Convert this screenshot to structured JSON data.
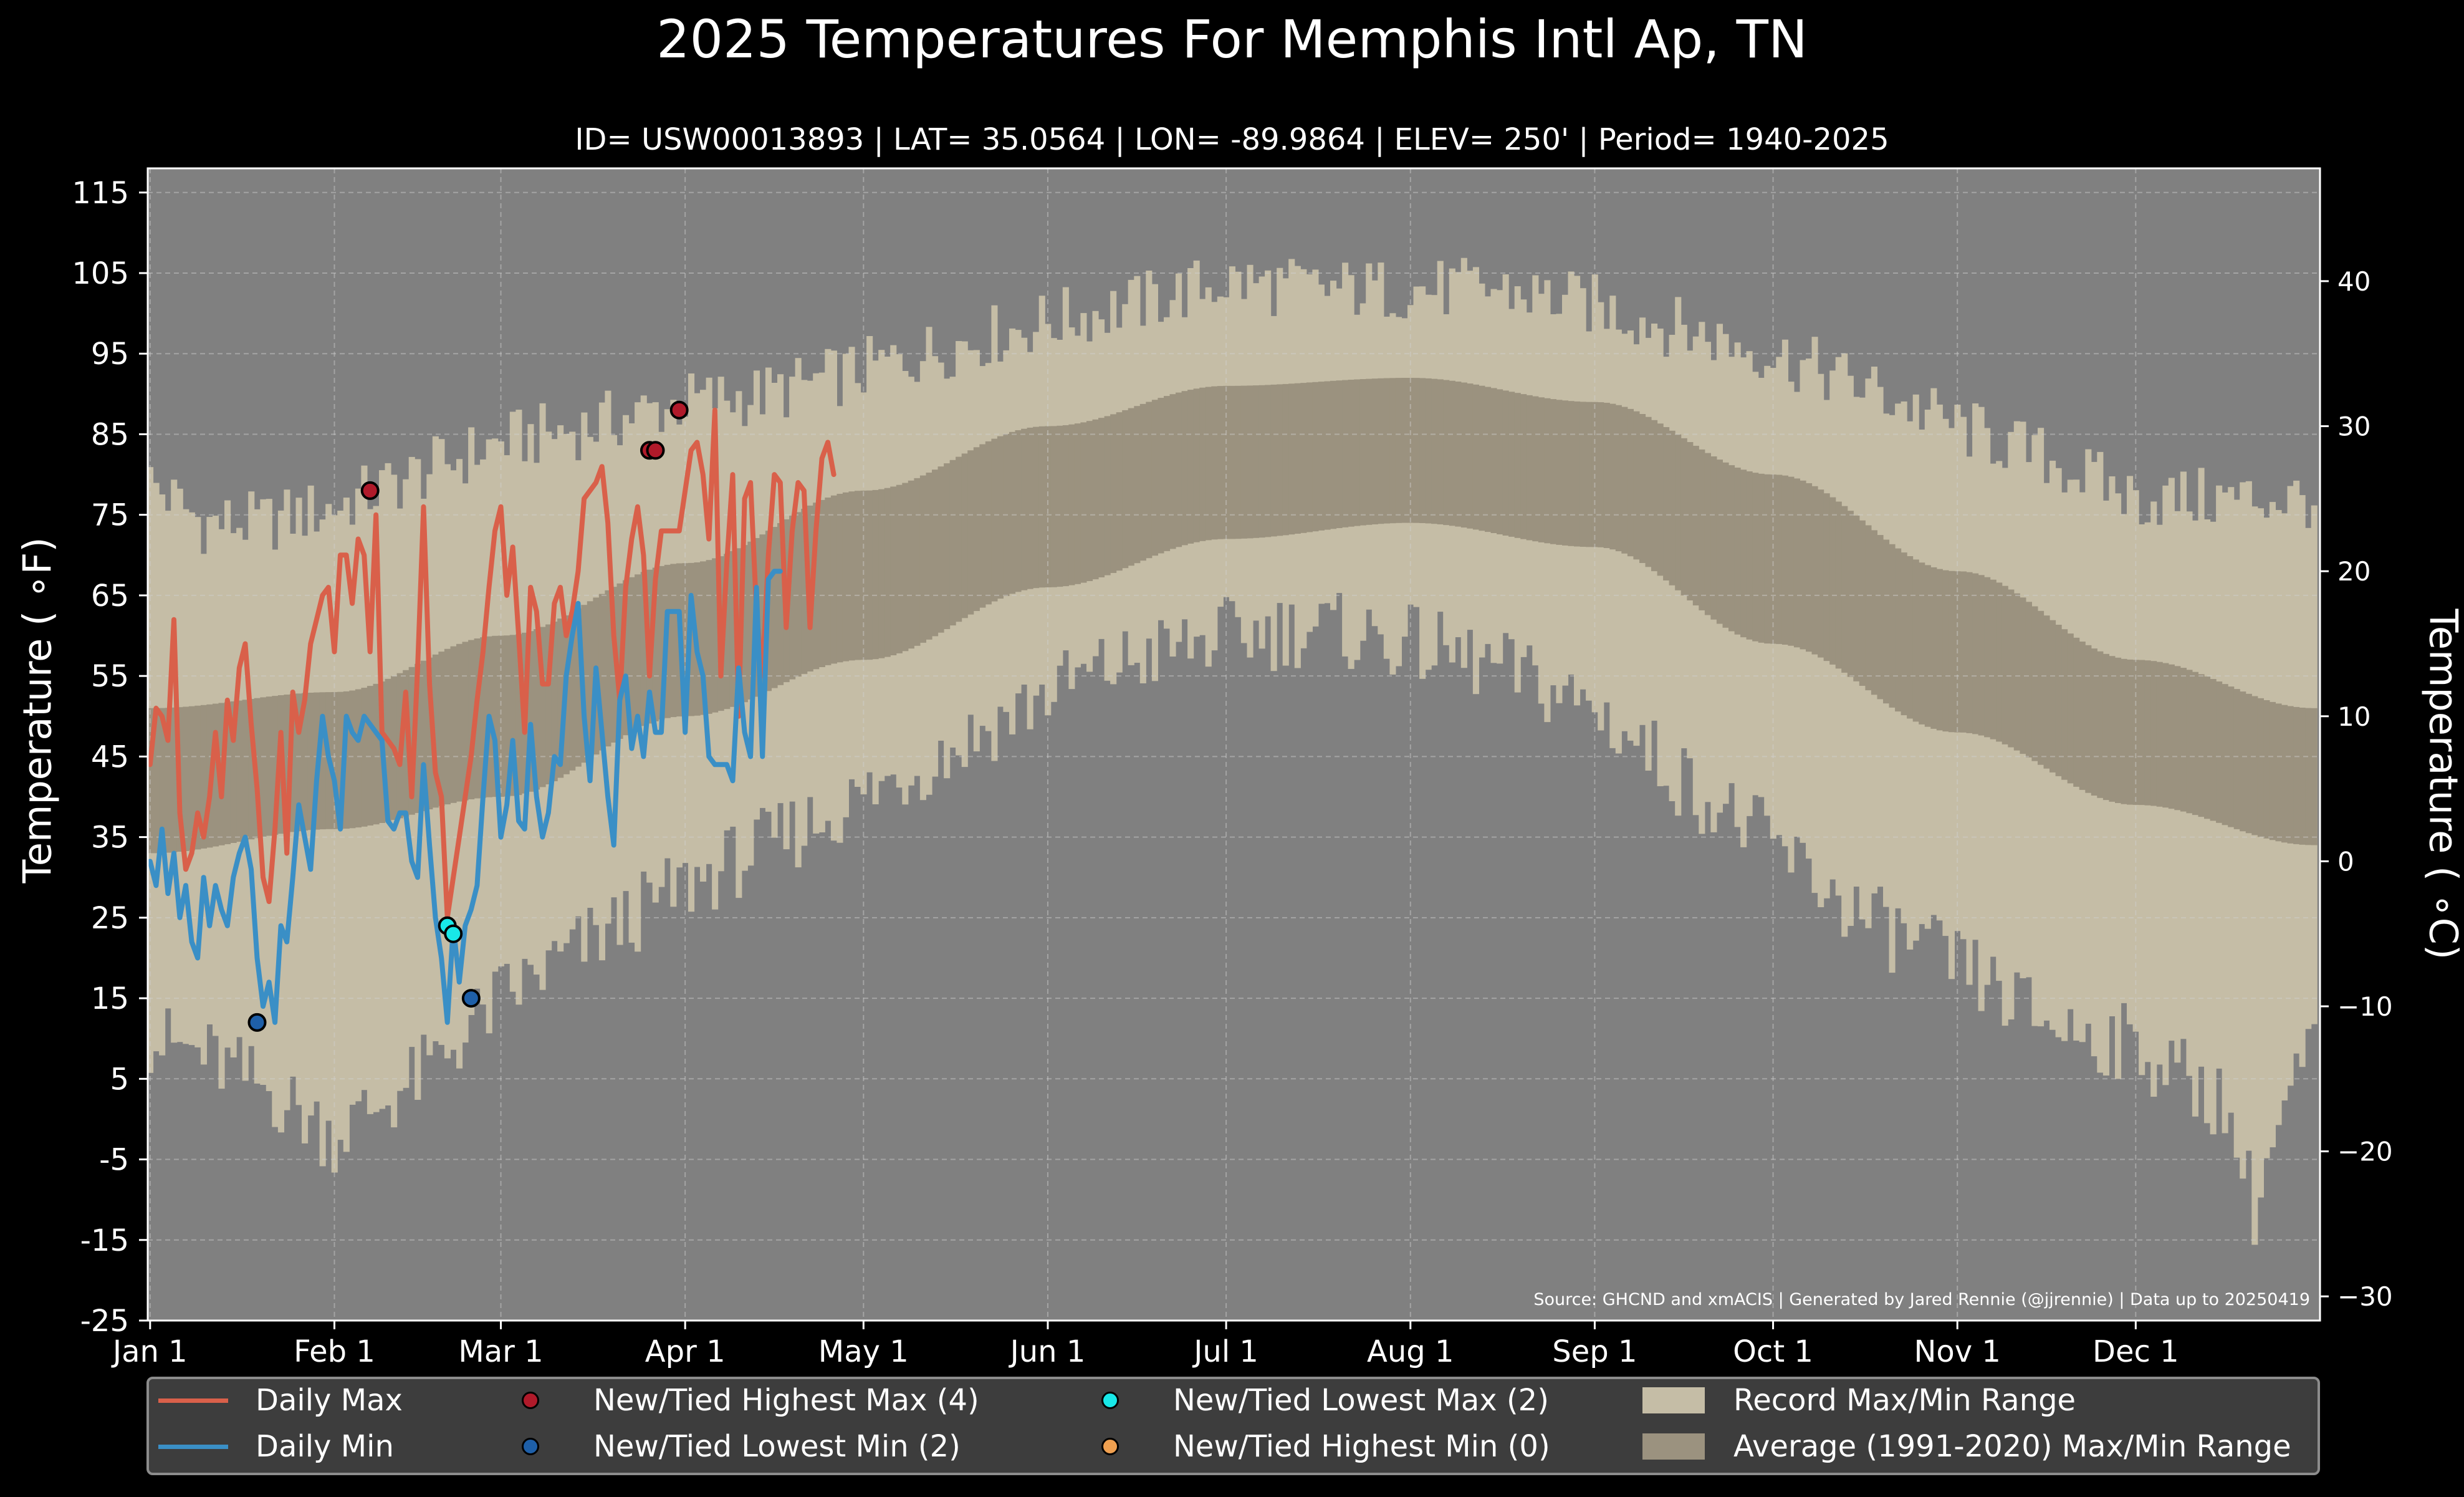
{
  "header": {
    "title": "2025 Temperatures For Memphis Intl Ap, TN",
    "subtitle": "ID= USW00013893 | LAT= 35.0564 | LON= -89.9864 | ELEV= 250' | Period= 1940-2025"
  },
  "source_note": "Source: GHCND and xmACIS | Generated by Jared Rennie (@jjrennie) | Data up to 20250419",
  "colors": {
    "figure_bg": "#000000",
    "plot_bg": "#808080",
    "record_range": "#c5bda6",
    "average_range": "#9b927f",
    "daily_max": "#d9604a",
    "daily_min": "#3a8fc6",
    "new_highest_max": "#b01a2a",
    "new_lowest_min": "#1e5fa8",
    "new_lowest_max": "#18e8e8",
    "new_highest_min": "#f0a050",
    "legend_bg": "#3d3d3d"
  },
  "legend": {
    "daily_max": "Daily Max",
    "daily_min": "Daily Min",
    "highest_max": "New/Tied Highest Max (4)",
    "lowest_min": "New/Tied Lowest Min (2)",
    "lowest_max": "New/Tied Lowest Max (2)",
    "highest_min": "New/Tied Highest Min (0)",
    "record_range": "Record Max/Min Range",
    "average_range": "Average (1991-2020) Max/Min Range"
  },
  "chart_data": {
    "type": "line",
    "title": "2025 Temperatures For Memphis Intl Ap, TN",
    "subtitle": "ID= USW00013893 | LAT= 35.0564 | LON= -89.9864 | ELEV= 250' | Period= 1940-2025",
    "ylabel": "Temperature ($^\\circ$F)",
    "ylabel_right": "Temperature ($^\\circ$C)",
    "ylabel_display": "Temperature ( ∘F)",
    "ylabel_right_display": "Temperature ( ∘C)",
    "ylim": [
      -25,
      118
    ],
    "y_ticks_f": [
      "115",
      "105",
      "95",
      "85",
      "75",
      "65",
      "55",
      "45",
      "35",
      "25",
      "15",
      "5",
      "-5",
      "-15",
      "-25"
    ],
    "y_ticks_c": [
      "40",
      "30",
      "20",
      "10",
      "0",
      "−10",
      "−20",
      "−30"
    ],
    "x_ticks": [
      "Jan 1",
      "Feb 1",
      "Mar 1",
      "Apr 1",
      "May 1",
      "Jun 1",
      "Jul 1",
      "Aug 1",
      "Sep 1",
      "Oct 1",
      "Nov 1",
      "Dec 1"
    ],
    "x_tick_days": [
      1,
      32,
      60,
      91,
      121,
      152,
      182,
      213,
      244,
      274,
      305,
      335
    ],
    "days_in_year": 365,
    "grid": true,
    "legend_position": "bottom",
    "daily_max": [
      [
        1,
        44
      ],
      [
        2,
        51
      ],
      [
        3,
        50
      ],
      [
        4,
        47
      ],
      [
        5,
        62
      ],
      [
        6,
        38
      ],
      [
        7,
        31
      ],
      [
        8,
        33
      ],
      [
        9,
        38
      ],
      [
        10,
        35
      ],
      [
        11,
        40
      ],
      [
        12,
        48
      ],
      [
        13,
        40
      ],
      [
        14,
        52
      ],
      [
        15,
        47
      ],
      [
        16,
        56
      ],
      [
        17,
        59
      ],
      [
        18,
        49
      ],
      [
        19,
        41
      ],
      [
        20,
        30
      ],
      [
        21,
        27
      ],
      [
        22,
        36
      ],
      [
        23,
        48
      ],
      [
        24,
        33
      ],
      [
        25,
        53
      ],
      [
        26,
        48
      ],
      [
        27,
        52
      ],
      [
        28,
        59
      ],
      [
        29,
        62
      ],
      [
        30,
        65
      ],
      [
        31,
        66
      ],
      [
        32,
        58
      ],
      [
        33,
        70
      ],
      [
        34,
        70
      ],
      [
        35,
        64
      ],
      [
        36,
        72
      ],
      [
        37,
        70
      ],
      [
        38,
        58
      ],
      [
        39,
        75
      ],
      [
        40,
        48
      ],
      [
        41,
        47
      ],
      [
        42,
        46
      ],
      [
        43,
        44
      ],
      [
        44,
        53
      ],
      [
        45,
        40
      ],
      [
        46,
        56
      ],
      [
        47,
        76
      ],
      [
        48,
        54
      ],
      [
        49,
        43
      ],
      [
        50,
        40
      ],
      [
        51,
        25
      ],
      [
        52,
        30
      ],
      [
        53,
        35
      ],
      [
        54,
        40
      ],
      [
        55,
        45
      ],
      [
        56,
        52
      ],
      [
        57,
        58
      ],
      [
        58,
        66
      ],
      [
        59,
        73
      ],
      [
        60,
        76
      ],
      [
        61,
        65
      ],
      [
        62,
        71
      ],
      [
        63,
        60
      ],
      [
        64,
        48
      ],
      [
        65,
        66
      ],
      [
        66,
        63
      ],
      [
        67,
        54
      ],
      [
        68,
        54
      ],
      [
        69,
        64
      ],
      [
        70,
        66
      ],
      [
        71,
        60
      ],
      [
        72,
        63
      ],
      [
        73,
        68
      ],
      [
        74,
        77
      ],
      [
        75,
        78
      ],
      [
        76,
        79
      ],
      [
        77,
        81
      ],
      [
        78,
        74
      ],
      [
        79,
        60
      ],
      [
        80,
        52
      ],
      [
        81,
        66
      ],
      [
        82,
        72
      ],
      [
        83,
        76
      ],
      [
        84,
        70
      ],
      [
        85,
        55
      ],
      [
        86,
        67
      ],
      [
        87,
        73
      ],
      [
        88,
        73
      ],
      [
        89,
        73
      ],
      [
        90,
        73
      ],
      [
        91,
        78
      ],
      [
        92,
        83
      ],
      [
        93,
        84
      ],
      [
        94,
        80
      ],
      [
        95,
        72
      ],
      [
        96,
        88
      ],
      [
        97,
        55
      ],
      [
        98,
        69
      ],
      [
        99,
        80
      ],
      [
        100,
        50
      ],
      [
        101,
        77
      ],
      [
        102,
        79
      ],
      [
        103,
        63
      ],
      [
        104,
        55
      ],
      [
        105,
        70
      ],
      [
        106,
        80
      ],
      [
        107,
        79
      ],
      [
        108,
        61
      ],
      [
        109,
        73
      ],
      [
        110,
        79
      ],
      [
        111,
        78
      ],
      [
        112,
        61
      ],
      [
        113,
        73
      ],
      [
        114,
        82
      ],
      [
        115,
        84
      ],
      [
        116,
        80
      ]
    ],
    "daily_min": [
      [
        1,
        32
      ],
      [
        2,
        29
      ],
      [
        3,
        36
      ],
      [
        4,
        28
      ],
      [
        5,
        33
      ],
      [
        6,
        25
      ],
      [
        7,
        29
      ],
      [
        8,
        22
      ],
      [
        9,
        20
      ],
      [
        10,
        30
      ],
      [
        11,
        24
      ],
      [
        12,
        29
      ],
      [
        13,
        26
      ],
      [
        14,
        24
      ],
      [
        15,
        30
      ],
      [
        16,
        33
      ],
      [
        17,
        35
      ],
      [
        18,
        31
      ],
      [
        19,
        20
      ],
      [
        20,
        14
      ],
      [
        21,
        17
      ],
      [
        22,
        12
      ],
      [
        23,
        24
      ],
      [
        24,
        22
      ],
      [
        25,
        30
      ],
      [
        26,
        39
      ],
      [
        27,
        35
      ],
      [
        28,
        31
      ],
      [
        29,
        42
      ],
      [
        30,
        50
      ],
      [
        31,
        45
      ],
      [
        32,
        42
      ],
      [
        33,
        36
      ],
      [
        34,
        50
      ],
      [
        35,
        48
      ],
      [
        36,
        47
      ],
      [
        37,
        50
      ],
      [
        38,
        49
      ],
      [
        39,
        48
      ],
      [
        40,
        47
      ],
      [
        41,
        37
      ],
      [
        42,
        36
      ],
      [
        43,
        38
      ],
      [
        44,
        38
      ],
      [
        45,
        32
      ],
      [
        46,
        30
      ],
      [
        47,
        44
      ],
      [
        48,
        34
      ],
      [
        49,
        25
      ],
      [
        50,
        20
      ],
      [
        51,
        12
      ],
      [
        52,
        24
      ],
      [
        53,
        17
      ],
      [
        54,
        24
      ],
      [
        55,
        26
      ],
      [
        56,
        29
      ],
      [
        57,
        40
      ],
      [
        58,
        50
      ],
      [
        59,
        47
      ],
      [
        60,
        35
      ],
      [
        61,
        39
      ],
      [
        62,
        47
      ],
      [
        63,
        37
      ],
      [
        64,
        36
      ],
      [
        65,
        49
      ],
      [
        66,
        40
      ],
      [
        67,
        35
      ],
      [
        68,
        38
      ],
      [
        69,
        45
      ],
      [
        70,
        44
      ],
      [
        71,
        55
      ],
      [
        72,
        60
      ],
      [
        73,
        64
      ],
      [
        74,
        50
      ],
      [
        75,
        42
      ],
      [
        76,
        56
      ],
      [
        77,
        48
      ],
      [
        78,
        40
      ],
      [
        79,
        34
      ],
      [
        80,
        52
      ],
      [
        81,
        55
      ],
      [
        82,
        46
      ],
      [
        83,
        50
      ],
      [
        84,
        45
      ],
      [
        85,
        53
      ],
      [
        86,
        48
      ],
      [
        87,
        48
      ],
      [
        88,
        63
      ],
      [
        89,
        63
      ],
      [
        90,
        63
      ],
      [
        91,
        48
      ],
      [
        92,
        65
      ],
      [
        93,
        58
      ],
      [
        94,
        55
      ],
      [
        95,
        45
      ],
      [
        96,
        44
      ],
      [
        97,
        44
      ],
      [
        98,
        44
      ],
      [
        99,
        42
      ],
      [
        100,
        56
      ],
      [
        101,
        48
      ],
      [
        102,
        45
      ],
      [
        103,
        66
      ],
      [
        104,
        45
      ],
      [
        105,
        67
      ],
      [
        106,
        68
      ],
      [
        107,
        68
      ]
    ],
    "record_high_max_points": [
      [
        38,
        78
      ],
      [
        85,
        83
      ],
      [
        86,
        83
      ],
      [
        90,
        88
      ]
    ],
    "record_low_min_points": [
      [
        19,
        12
      ],
      [
        55,
        15
      ]
    ],
    "record_low_max_points": [
      [
        51,
        24
      ],
      [
        52,
        23
      ]
    ],
    "record_high_min_points": [],
    "record_max_envelope": [
      [
        1,
        79
      ],
      [
        10,
        74
      ],
      [
        20,
        74
      ],
      [
        32,
        76
      ],
      [
        46,
        80
      ],
      [
        60,
        84
      ],
      [
        75,
        86
      ],
      [
        91,
        89
      ],
      [
        105,
        90
      ],
      [
        121,
        93
      ],
      [
        136,
        96
      ],
      [
        152,
        99
      ],
      [
        166,
        101
      ],
      [
        182,
        104
      ],
      [
        197,
        103
      ],
      [
        213,
        103
      ],
      [
        228,
        103
      ],
      [
        244,
        101
      ],
      [
        259,
        98
      ],
      [
        274,
        95
      ],
      [
        289,
        91
      ],
      [
        305,
        86
      ],
      [
        320,
        82
      ],
      [
        335,
        77
      ],
      [
        350,
        77
      ],
      [
        365,
        77
      ]
    ],
    "record_min_envelope": [
      [
        1,
        10
      ],
      [
        10,
        8
      ],
      [
        20,
        4
      ],
      [
        32,
        -2
      ],
      [
        46,
        5
      ],
      [
        60,
        15
      ],
      [
        75,
        22
      ],
      [
        91,
        29
      ],
      [
        105,
        34
      ],
      [
        121,
        40
      ],
      [
        136,
        46
      ],
      [
        152,
        53
      ],
      [
        166,
        57
      ],
      [
        182,
        60
      ],
      [
        197,
        61
      ],
      [
        213,
        59
      ],
      [
        228,
        56
      ],
      [
        244,
        51
      ],
      [
        259,
        42
      ],
      [
        274,
        34
      ],
      [
        289,
        25
      ],
      [
        305,
        19
      ],
      [
        320,
        12
      ],
      [
        335,
        9
      ],
      [
        350,
        2
      ],
      [
        355,
        -11
      ],
      [
        358,
        -3
      ],
      [
        365,
        10
      ]
    ],
    "avg_max_curve": [
      [
        1,
        51
      ],
      [
        32,
        53
      ],
      [
        60,
        60
      ],
      [
        91,
        69
      ],
      [
        121,
        78
      ],
      [
        152,
        86
      ],
      [
        182,
        91
      ],
      [
        213,
        92
      ],
      [
        244,
        89
      ],
      [
        274,
        80
      ],
      [
        305,
        68
      ],
      [
        335,
        57
      ],
      [
        365,
        51
      ]
    ],
    "avg_min_curve": [
      [
        1,
        33
      ],
      [
        32,
        36
      ],
      [
        60,
        40
      ],
      [
        91,
        50
      ],
      [
        121,
        57
      ],
      [
        152,
        66
      ],
      [
        182,
        72
      ],
      [
        213,
        74
      ],
      [
        244,
        71
      ],
      [
        274,
        59
      ],
      [
        305,
        48
      ],
      [
        335,
        39
      ],
      [
        365,
        34
      ]
    ]
  }
}
